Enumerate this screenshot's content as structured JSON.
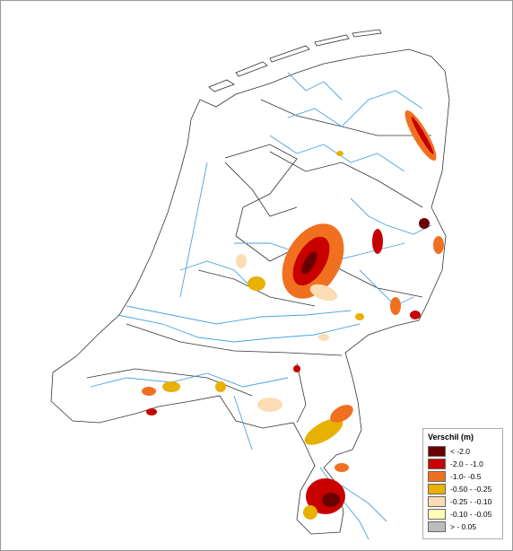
{
  "legend": {
    "title": "Verschil (m)",
    "items": [
      {
        "label": "< -2.0",
        "color": "#6b0000"
      },
      {
        "label": "-2.0 - -1.0",
        "color": "#c80000"
      },
      {
        "label": "-1.0- -0.5",
        "color": "#f07020"
      },
      {
        "label": "-0.50 - -0.25",
        "color": "#e8b000"
      },
      {
        "label": "-0.25 - -0.10",
        "color": "#fcdcb4"
      },
      {
        "label": "-0.10 - -0.05",
        "color": "#ffffb4"
      },
      {
        "label": "> - 0.05",
        "color": "#bdbdbd"
      }
    ]
  }
}
